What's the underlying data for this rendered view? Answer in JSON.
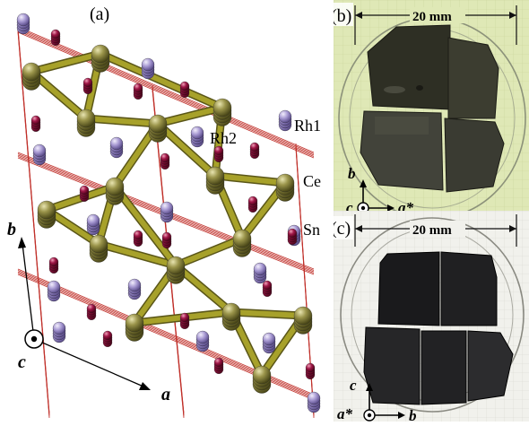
{
  "panel_a": {
    "label": "(a)",
    "atoms": {
      "rh1": "Rh1",
      "rh2": "Rh2",
      "ce": "Ce",
      "sn": "Sn"
    },
    "axes": {
      "b": "b",
      "c": "c",
      "a": "a"
    },
    "colors": {
      "ce": "#8f8a3c",
      "bond": "#a7a12a",
      "sn": "#a89ad0",
      "rh": "#8a1034",
      "cell_line": "#c0302a"
    }
  },
  "panel_b": {
    "label": "(b)",
    "scale": "20 mm",
    "axis_b": "b",
    "axis_c": "c",
    "axis_astar": "a*"
  },
  "panel_c": {
    "label": "(c)",
    "scale": "20 mm",
    "axis_c": "c",
    "axis_astar": "a*",
    "axis_b": "b"
  }
}
